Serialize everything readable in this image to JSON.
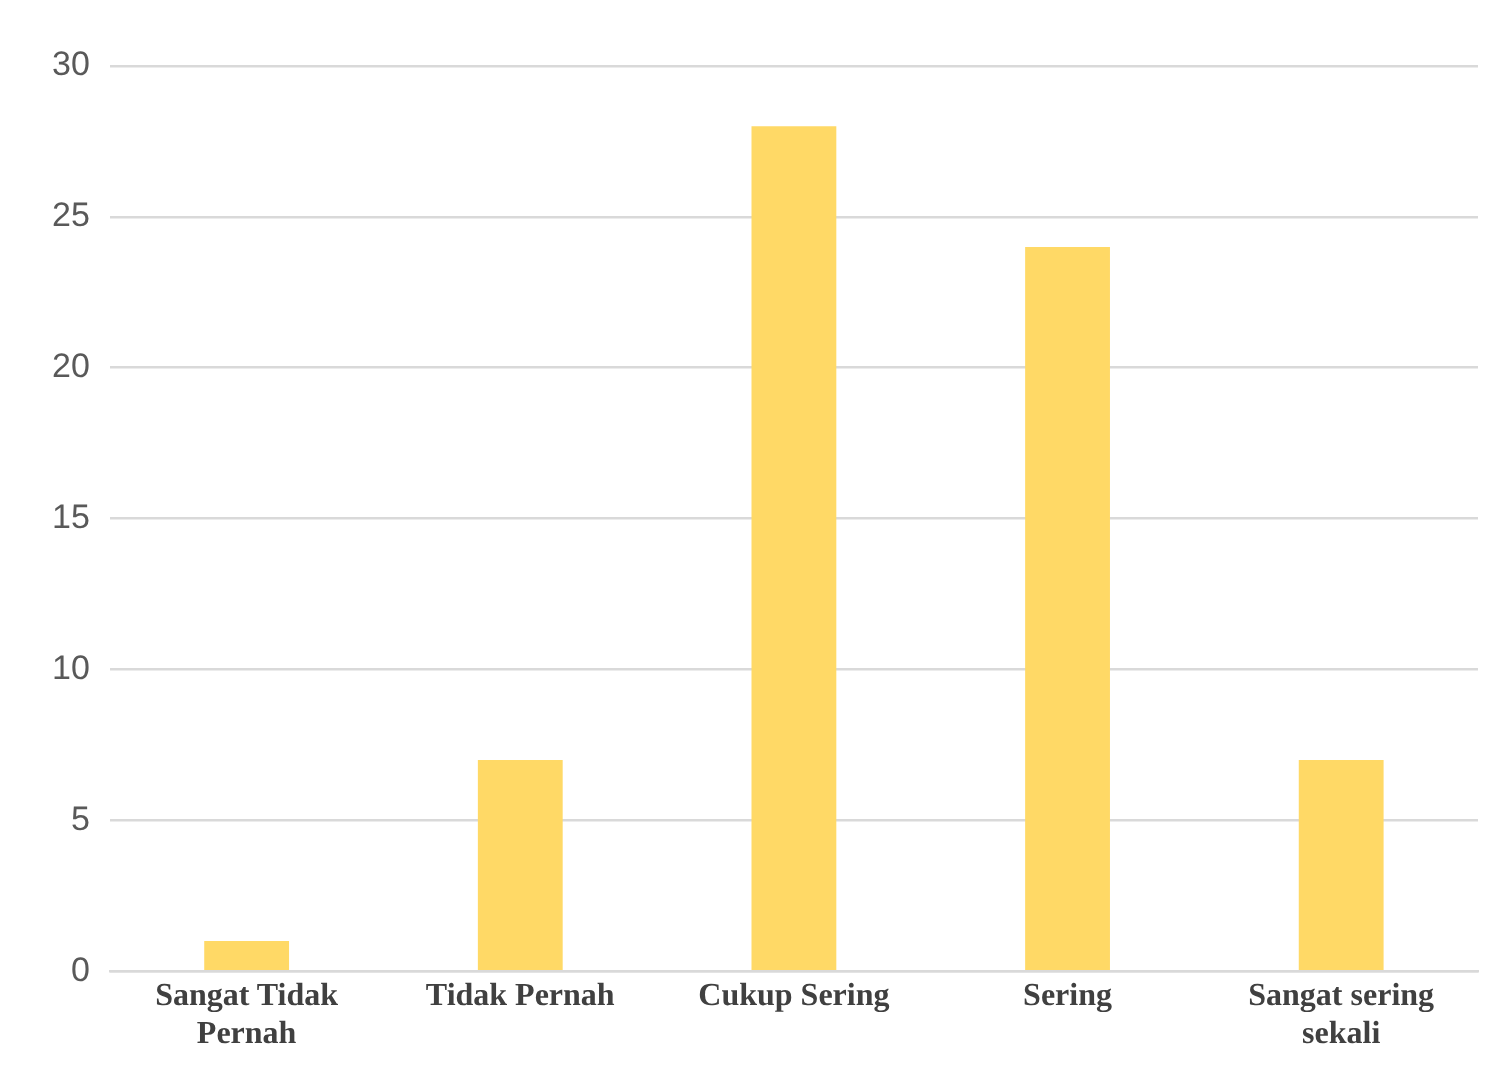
{
  "chart_data": {
    "type": "bar",
    "categories": [
      "Sangat Tidak Pernah",
      "Tidak Pernah",
      "Cukup Sering",
      "Sering",
      "Sangat sering sekali"
    ],
    "values": [
      1,
      7,
      28,
      24,
      7
    ],
    "color": "#ffd966",
    "ylim": [
      0,
      30
    ],
    "yticks": [
      0,
      5,
      10,
      15,
      20,
      25,
      30
    ],
    "grid": "y",
    "legend": false
  }
}
